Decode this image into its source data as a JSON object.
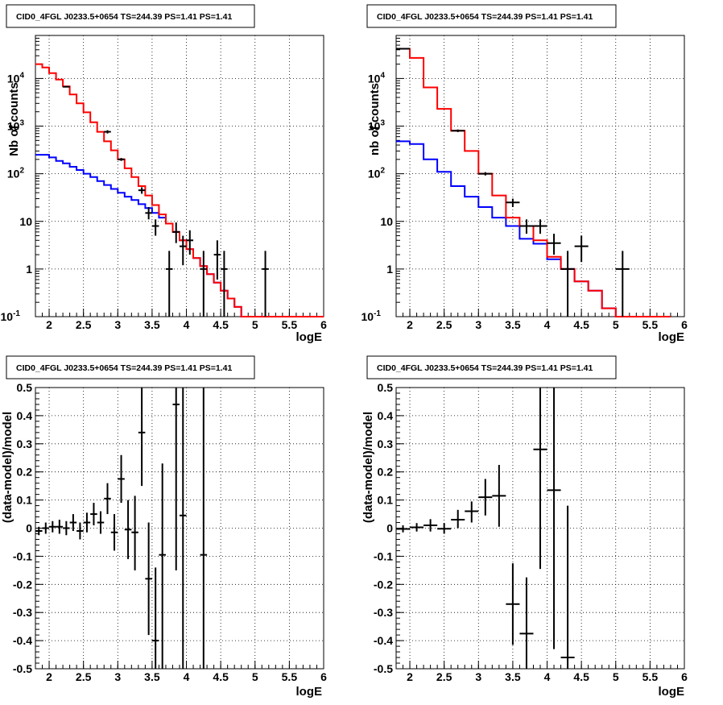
{
  "colors": {
    "model": "#ff0000",
    "background": "#0000ff",
    "data": "#000000",
    "grid": "#000000"
  },
  "chart_data": [
    {
      "type": "line",
      "title": "CID0_4FGL J0233.5+0654 TS=244.39 PS=1.41 PS=1.41",
      "xlabel": "logE",
      "ylabel": "Nb of counts",
      "yscale": "log",
      "xlim": [
        1.8,
        6.0
      ],
      "ylim": [
        0.1,
        80000
      ],
      "grid": true,
      "x_ticks": [
        "2",
        "2.5",
        "3",
        "3.5",
        "4",
        "4.5",
        "5",
        "5.5",
        "6"
      ],
      "y_ticks": [
        "10^-1",
        "1",
        "10",
        "10^2",
        "10^3",
        "10^4"
      ],
      "bin_edges": [
        1.8,
        1.9,
        2.0,
        2.1,
        2.2,
        2.3,
        2.4,
        2.5,
        2.6,
        2.7,
        2.8,
        2.9,
        3.0,
        3.1,
        3.2,
        3.3,
        3.4,
        3.5,
        3.6,
        3.7,
        3.8,
        3.9,
        4.0,
        4.1,
        4.2,
        4.3,
        4.4,
        4.5,
        4.6,
        4.7,
        4.8,
        4.9,
        5.0,
        5.1,
        5.2,
        5.3,
        5.4,
        5.5,
        5.6,
        5.7,
        5.8,
        5.9,
        6.0
      ],
      "series": [
        {
          "values": [
            20000,
            17000,
            13000,
            9500,
            6800,
            4600,
            3000,
            1950,
            1200,
            760,
            480,
            310,
            200,
            130,
            85,
            55,
            35,
            22,
            14,
            9,
            6,
            4,
            2.6,
            1.7,
            1.15,
            0.78,
            0.52,
            0.35,
            0.24,
            0.16,
            0.1,
            0.1,
            0.1,
            0.1,
            0.1,
            0.1,
            0.1,
            0.1,
            0.1,
            0.1,
            0.1,
            0.1
          ]
        },
        {
          "values": [
            250,
            250,
            220,
            185,
            165,
            140,
            120,
            100,
            85,
            70,
            58,
            48,
            40,
            33,
            28,
            23,
            19,
            15,
            12,
            9,
            6,
            4,
            2.6,
            1.7,
            1.15,
            0.78,
            0.52,
            0.35,
            0.24,
            0.16,
            0.1,
            0.1,
            0.1,
            0.1,
            0.1,
            0.1,
            0.1,
            0.1,
            0.1,
            0.1,
            0.1,
            0.1
          ]
        }
      ],
      "points": [
        {
          "x": 2.25,
          "y": 6700,
          "ylo": 6500,
          "yhi": 6900
        },
        {
          "x": 2.85,
          "y": 760,
          "ylo": 700,
          "yhi": 820
        },
        {
          "x": 3.05,
          "y": 200,
          "ylo": 186,
          "yhi": 214
        },
        {
          "x": 3.35,
          "y": 45,
          "ylo": 38,
          "yhi": 52
        },
        {
          "x": 3.45,
          "y": 15,
          "ylo": 11,
          "yhi": 20
        },
        {
          "x": 3.55,
          "y": 8,
          "ylo": 5,
          "yhi": 11
        },
        {
          "x": 3.75,
          "y": 1,
          "ylo": 0.1,
          "yhi": 2.4
        },
        {
          "x": 3.85,
          "y": 6,
          "ylo": 3.5,
          "yhi": 9.5
        },
        {
          "x": 3.95,
          "y": 3,
          "ylo": 1.2,
          "yhi": 5
        },
        {
          "x": 4.05,
          "y": 4,
          "ylo": 2,
          "yhi": 6.5
        },
        {
          "x": 4.25,
          "y": 1,
          "ylo": 0.1,
          "yhi": 2.4
        },
        {
          "x": 4.45,
          "y": 2,
          "ylo": 0.6,
          "yhi": 4
        },
        {
          "x": 4.55,
          "y": 1,
          "ylo": 0.1,
          "yhi": 2.4
        },
        {
          "x": 5.15,
          "y": 1,
          "ylo": 0.1,
          "yhi": 2.4
        }
      ]
    },
    {
      "type": "line",
      "title": "CID0_4FGL J0233.5+0654 TS=244.39 PS=1.41 PS=1.41",
      "xlabel": "logE",
      "ylabel": "nb of counts",
      "yscale": "log",
      "xlim": [
        1.8,
        6.0
      ],
      "ylim": [
        0.1,
        80000
      ],
      "grid": true,
      "x_ticks": [
        "2",
        "2.5",
        "3",
        "3.5",
        "4",
        "4.5",
        "5",
        "5.5",
        "6"
      ],
      "y_ticks": [
        "10^-1",
        "1",
        "10",
        "10^2",
        "10^3",
        "10^4"
      ],
      "bin_edges": [
        1.8,
        2.0,
        2.2,
        2.4,
        2.6,
        2.8,
        3.0,
        3.2,
        3.4,
        3.6,
        3.8,
        4.0,
        4.2,
        4.4,
        4.6,
        4.8,
        5.0,
        5.2,
        5.4,
        5.6,
        5.8,
        6.0
      ],
      "series": [
        {
          "values": [
            42000,
            27000,
            6500,
            2300,
            800,
            300,
            100,
            35,
            12,
            8,
            4,
            1.8,
            1,
            0.55,
            0.35,
            0.15,
            0.1,
            0.1,
            0.1,
            0.1
          ]
        },
        {
          "values": [
            480,
            420,
            200,
            110,
            55,
            33,
            20,
            12,
            8,
            4.3,
            3.4,
            1.6,
            1,
            0.55,
            0.35,
            0.15,
            0.1,
            0.1,
            0.1,
            0.1
          ]
        }
      ],
      "points": [
        {
          "x": 1.9,
          "y": 42000,
          "ylo": 41700,
          "yhi": 42300
        },
        {
          "x": 2.7,
          "y": 800,
          "ylo": 750,
          "yhi": 850
        },
        {
          "x": 3.1,
          "y": 100,
          "ylo": 92,
          "yhi": 108
        },
        {
          "x": 3.5,
          "y": 25,
          "ylo": 20,
          "yhi": 30
        },
        {
          "x": 3.7,
          "y": 8,
          "ylo": 5.5,
          "yhi": 11
        },
        {
          "x": 3.9,
          "y": 8,
          "ylo": 5.5,
          "yhi": 11
        },
        {
          "x": 4.1,
          "y": 3.5,
          "ylo": 2,
          "yhi": 5.5
        },
        {
          "x": 4.3,
          "y": 1,
          "ylo": 0.1,
          "yhi": 2.4
        },
        {
          "x": 4.5,
          "y": 3,
          "ylo": 1.4,
          "yhi": 5
        },
        {
          "x": 5.1,
          "y": 1,
          "ylo": 0.1,
          "yhi": 2.4
        }
      ]
    },
    {
      "type": "scatter",
      "title": "CID0_4FGL J0233.5+0654 TS=244.39 PS=1.41 PS=1.41",
      "xlabel": "logE",
      "ylabel": "(data-model)/model",
      "xlim": [
        1.8,
        6.0
      ],
      "ylim": [
        -0.5,
        0.5
      ],
      "grid": true,
      "x_ticks": [
        "2",
        "2.5",
        "3",
        "3.5",
        "4",
        "4.5",
        "5",
        "5.5",
        "6"
      ],
      "y_ticks": [
        "-0.5",
        "-0.4",
        "-0.3",
        "-0.2",
        "-0.1",
        "0",
        "0.1",
        "0.2",
        "0.3",
        "0.4",
        "0.5"
      ],
      "xerr": 0.05,
      "points": [
        {
          "x": 1.85,
          "y": -0.01,
          "ylo": -0.025,
          "yhi": 0.005
        },
        {
          "x": 1.95,
          "y": 0.0,
          "ylo": -0.02,
          "yhi": 0.02
        },
        {
          "x": 2.05,
          "y": 0.005,
          "ylo": -0.015,
          "yhi": 0.025
        },
        {
          "x": 2.15,
          "y": 0.005,
          "ylo": -0.02,
          "yhi": 0.03
        },
        {
          "x": 2.25,
          "y": 0.0,
          "ylo": -0.025,
          "yhi": 0.025
        },
        {
          "x": 2.35,
          "y": 0.02,
          "ylo": -0.01,
          "yhi": 0.05
        },
        {
          "x": 2.45,
          "y": -0.01,
          "ylo": -0.04,
          "yhi": 0.02
        },
        {
          "x": 2.55,
          "y": 0.02,
          "ylo": -0.015,
          "yhi": 0.055
        },
        {
          "x": 2.65,
          "y": 0.05,
          "ylo": 0.01,
          "yhi": 0.09
        },
        {
          "x": 2.75,
          "y": 0.02,
          "ylo": -0.02,
          "yhi": 0.06
        },
        {
          "x": 2.85,
          "y": 0.105,
          "ylo": 0.05,
          "yhi": 0.16
        },
        {
          "x": 2.95,
          "y": -0.015,
          "ylo": -0.08,
          "yhi": 0.05
        },
        {
          "x": 3.05,
          "y": 0.175,
          "ylo": 0.09,
          "yhi": 0.26
        },
        {
          "x": 3.15,
          "y": -0.005,
          "ylo": -0.11,
          "yhi": 0.1
        },
        {
          "x": 3.25,
          "y": -0.015,
          "ylo": -0.15,
          "yhi": 0.115
        },
        {
          "x": 3.35,
          "y": 0.34,
          "ylo": 0.15,
          "yhi": 0.5
        },
        {
          "x": 3.45,
          "y": -0.18,
          "ylo": -0.38,
          "yhi": 0.02
        },
        {
          "x": 3.55,
          "y": -0.4,
          "ylo": -0.5,
          "yhi": -0.14
        },
        {
          "x": 3.65,
          "y": -0.095,
          "ylo": -0.5,
          "yhi": 0.23
        },
        {
          "x": 3.85,
          "y": 0.44,
          "ylo": -0.15,
          "yhi": 0.5
        },
        {
          "x": 3.95,
          "y": 0.045,
          "ylo": -0.5,
          "yhi": 0.5
        },
        {
          "x": 4.25,
          "y": -0.095,
          "ylo": -0.5,
          "yhi": 0.5
        }
      ]
    },
    {
      "type": "scatter",
      "title": "CID0_4FGL J0233.5+0654 TS=244.39 PS=1.41 PS=1.41",
      "xlabel": "logE",
      "ylabel": "(data-model)/model",
      "xlim": [
        1.8,
        6.0
      ],
      "ylim": [
        -0.5,
        0.5
      ],
      "grid": true,
      "x_ticks": [
        "2",
        "2.5",
        "3",
        "3.5",
        "4",
        "4.5",
        "5",
        "5.5",
        "6"
      ],
      "y_ticks": [
        "-0.5",
        "-0.4",
        "-0.3",
        "-0.2",
        "-0.1",
        "0",
        "0.1",
        "0.2",
        "0.3",
        "0.4",
        "0.5"
      ],
      "xerr": 0.1,
      "points": [
        {
          "x": 1.9,
          "y": -0.003,
          "ylo": -0.015,
          "yhi": 0.01
        },
        {
          "x": 2.1,
          "y": 0.003,
          "ylo": -0.012,
          "yhi": 0.018
        },
        {
          "x": 2.3,
          "y": 0.01,
          "ylo": -0.012,
          "yhi": 0.032
        },
        {
          "x": 2.5,
          "y": -0.002,
          "ylo": -0.02,
          "yhi": 0.018
        },
        {
          "x": 2.7,
          "y": 0.03,
          "ylo": 0.0,
          "yhi": 0.065
        },
        {
          "x": 2.9,
          "y": 0.06,
          "ylo": 0.02,
          "yhi": 0.095
        },
        {
          "x": 3.1,
          "y": 0.11,
          "ylo": 0.045,
          "yhi": 0.175
        },
        {
          "x": 3.3,
          "y": 0.115,
          "ylo": 0.005,
          "yhi": 0.225
        },
        {
          "x": 3.5,
          "y": -0.27,
          "ylo": -0.415,
          "yhi": -0.125
        },
        {
          "x": 3.7,
          "y": -0.375,
          "ylo": -0.5,
          "yhi": -0.175
        },
        {
          "x": 3.9,
          "y": 0.28,
          "ylo": -0.145,
          "yhi": 0.5
        },
        {
          "x": 4.1,
          "y": 0.135,
          "ylo": -0.43,
          "yhi": 0.5
        },
        {
          "x": 4.3,
          "y": -0.46,
          "ylo": -0.5,
          "yhi": 0.08
        }
      ]
    }
  ]
}
